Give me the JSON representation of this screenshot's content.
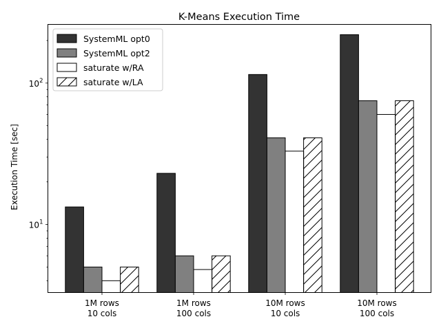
{
  "chart_data": {
    "type": "bar",
    "title": "K-Means Execution Time",
    "xlabel": "",
    "ylabel": "Execution Time [sec]",
    "yscale": "log",
    "ylim": [
      3.3,
      260
    ],
    "y_ticks": [
      {
        "value": 10,
        "base": "10",
        "exp": "1"
      },
      {
        "value": 100,
        "base": "10",
        "exp": "2"
      }
    ],
    "categories": [
      [
        "1M rows",
        "10 cols"
      ],
      [
        "1M rows",
        "100 cols"
      ],
      [
        "10M rows",
        "10 cols"
      ],
      [
        "10M rows",
        "100 cols"
      ]
    ],
    "series": [
      {
        "name": "SystemML opt0",
        "color": "#333333",
        "pattern": "solid",
        "values": [
          13.3,
          23,
          115,
          220
        ]
      },
      {
        "name": "SystemML opt2",
        "color": "#808080",
        "pattern": "solid",
        "values": [
          5.0,
          6.0,
          41,
          75
        ]
      },
      {
        "name": "saturate w/RA",
        "color": "#ffffff",
        "pattern": "solid",
        "values": [
          4.0,
          4.8,
          33,
          60
        ]
      },
      {
        "name": "saturate w/LA",
        "color": "#ffffff",
        "pattern": "hatch",
        "values": [
          5.0,
          6.0,
          41,
          75
        ]
      }
    ],
    "legend_position": "top-left",
    "grid": false
  }
}
